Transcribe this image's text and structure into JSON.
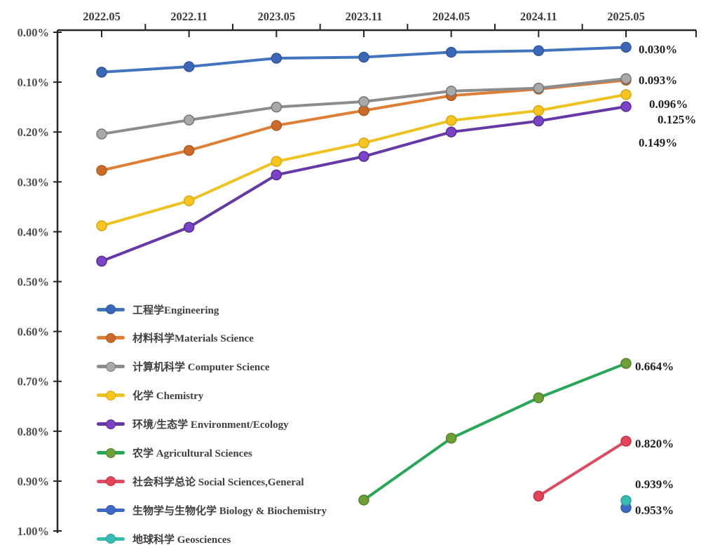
{
  "chart_data": {
    "type": "line",
    "title": "",
    "x_axis_position": "top",
    "y_axis": {
      "label": "",
      "unit": "%",
      "min": 0.0,
      "max": 1.0,
      "inverted": true,
      "grid": false
    },
    "x_categories": [
      "2022.05",
      "2022.11",
      "2023.05",
      "2023.11",
      "2024.05",
      "2024.11",
      "2025.05"
    ],
    "y_tick_labels": [
      "0.00%",
      "0.10%",
      "0.20%",
      "0.30%",
      "0.40%",
      "0.50%",
      "0.60%",
      "0.70%",
      "0.80%",
      "0.90%",
      "1.00%"
    ],
    "legend_position": "inside-left-bottom",
    "series": [
      {
        "id": "engineering",
        "label": "工程学Engineering",
        "color": "#4273BE",
        "marker_color": "#3B67B8",
        "marker_edge": "#2F569C",
        "values": [
          0.08,
          0.069,
          0.052,
          0.05,
          0.04,
          0.037,
          0.03
        ],
        "end_label": "0.030%"
      },
      {
        "id": "materials_science",
        "label": "材料科学Materials Science",
        "color": "#DF7E35",
        "marker_color": "#CC6A28",
        "marker_edge": "#AF5A20",
        "values": [
          0.277,
          0.237,
          0.187,
          0.157,
          0.127,
          0.114,
          0.096
        ],
        "end_label": "0.096%"
      },
      {
        "id": "computer_science",
        "label": "计算机科学 Computer Science",
        "color": "#8C8C8C",
        "marker_color": "#A9A9A9",
        "marker_edge": "#767676",
        "values": [
          0.204,
          0.176,
          0.15,
          0.139,
          0.118,
          0.112,
          0.093
        ],
        "end_label": "0.093%"
      },
      {
        "id": "chemistry",
        "label": "化学 Chemistry",
        "color": "#EEC321",
        "marker_color": "#F8C51E",
        "marker_edge": "#D9A511",
        "values": [
          0.388,
          0.338,
          0.259,
          0.222,
          0.177,
          0.157,
          0.125
        ],
        "end_label": "0.125%"
      },
      {
        "id": "environment_ecology",
        "label": "环境/生态学 Environment/Ecology",
        "color": "#6639A6",
        "marker_color": "#7C42C8",
        "marker_edge": "#552D92",
        "values": [
          0.459,
          0.391,
          0.286,
          0.249,
          0.2,
          0.178,
          0.149
        ],
        "end_label": "0.149%"
      },
      {
        "id": "agricultural_sciences",
        "label": "农学 Agricultural Sciences",
        "color": "#27A857",
        "marker_color": "#6DA035",
        "marker_edge": "#567F2B",
        "values": [
          null,
          null,
          null,
          0.938,
          0.814,
          0.733,
          0.664
        ],
        "end_label": "0.664%"
      },
      {
        "id": "social_sciences_general",
        "label": "社会科学总论 Social Sciences,General",
        "color": "#E04A5F",
        "marker_color": "#E4435A",
        "marker_edge": "#C23348",
        "values": [
          null,
          null,
          null,
          null,
          null,
          0.93,
          0.82
        ],
        "end_label": "0.820%"
      },
      {
        "id": "biology_biochemistry",
        "label": "生物学与生物化学 Biology & Biochemistry",
        "color": "#3E68C6",
        "marker_color": "#3E68C6",
        "marker_edge": "#3156A8",
        "values": [
          null,
          null,
          null,
          null,
          null,
          null,
          0.953
        ],
        "end_label": "0.953%"
      },
      {
        "id": "geosciences",
        "label": "地球科学 Geosciences",
        "color": "#36BDB2",
        "marker_color": "#36BDB2",
        "marker_edge": "#2BA099",
        "values": [
          null,
          null,
          null,
          null,
          null,
          null,
          0.939
        ],
        "end_label": "0.939%"
      }
    ]
  }
}
